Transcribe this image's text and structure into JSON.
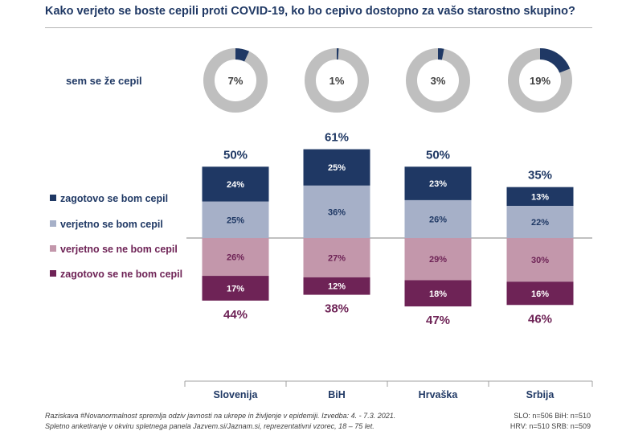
{
  "title": "Kako verjeto se boste cepili  proti COVID-19, ko bo cepivo dostopno za vašo starostno skupino?",
  "donut_label": "sem se že cepil",
  "legend": [
    {
      "label": "zagotovo se bom cepil",
      "color": "#1f3864"
    },
    {
      "label": "verjetno se bom cepil",
      "color": "#a6b0c8"
    },
    {
      "label": "verjetno se ne bom cepil",
      "color": "#c397ab"
    },
    {
      "label": "zagotovo se ne bom cepil",
      "color": "#6e2356"
    }
  ],
  "colors": {
    "positive_total": "#1f3864",
    "negative_total": "#6e2356",
    "donut_fill": "#1f3864",
    "donut_rest": "#bfbfbf"
  },
  "chart_data": {
    "type": "bar",
    "categories": [
      "Slovenija",
      "BiH",
      "Hrvaška",
      "Srbija"
    ],
    "already_vaccinated": [
      7,
      1,
      3,
      19
    ],
    "already_vaccinated_labels": [
      "7%",
      "1%",
      "3%",
      "19%"
    ],
    "series": [
      {
        "name": "zagotovo se bom cepil",
        "values": [
          24,
          25,
          23,
          13
        ],
        "labels": [
          "24%",
          "25%",
          "23%",
          "13%"
        ]
      },
      {
        "name": "verjetno se bom cepil",
        "values": [
          25,
          36,
          26,
          22
        ],
        "labels": [
          "25%",
          "36%",
          "26%",
          "22%"
        ]
      },
      {
        "name": "verjetno se ne bom cepil",
        "values": [
          26,
          27,
          29,
          30
        ],
        "labels": [
          "26%",
          "27%",
          "29%",
          "30%"
        ]
      },
      {
        "name": "zagotovo se ne bom cepil",
        "values": [
          17,
          12,
          18,
          16
        ],
        "labels": [
          "17%",
          "12%",
          "18%",
          "16%"
        ]
      }
    ],
    "positive_totals": [
      "50%",
      "61%",
      "50%",
      "35%"
    ],
    "negative_totals": [
      "44%",
      "38%",
      "47%",
      "46%"
    ]
  },
  "footnote": {
    "line1": "Raziskava #Novanormalnost spremlja odziv javnosti na ukrepe in življenje v epidemiji. Izvedba: 4. - 7.3. 2021.",
    "line2": "Spletno anketiranje v okviru spletnega panela Jazvem.si/Jaznam.si, reprezentativni vzorec, 18 – 75 let."
  },
  "sample_sizes": {
    "line1": "SLO: n=506 BiH: n=510",
    "line2": "HRV: n=510 SRB: n=509"
  }
}
